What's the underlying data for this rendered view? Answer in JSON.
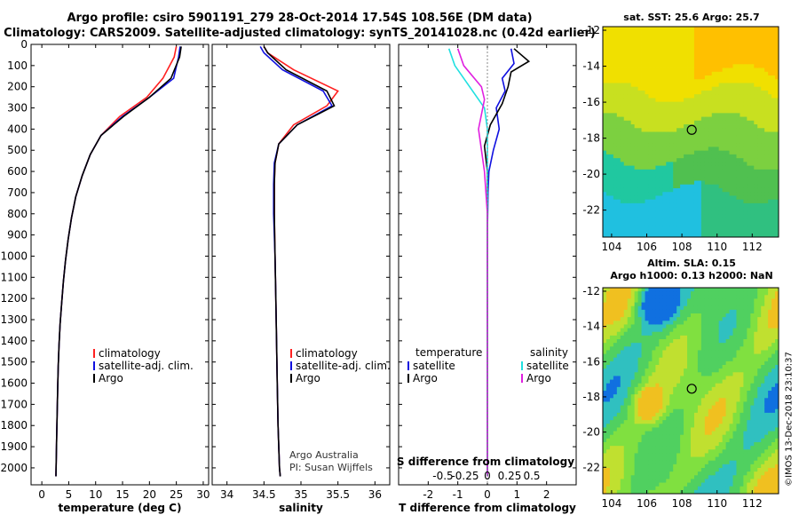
{
  "figure": {
    "title_line1": "Argo profile: csiro 5901191_279 28-Oct-2014 17.54S 108.56E (DM data)",
    "title_line2": "Climatology: CARS2009. Satellite-adjusted climatology: synTS_20141028.nc (0.42d earlier)",
    "timestamp": "©IMOS 13-Dec-2018 23:10:37"
  },
  "colors": {
    "climatology": "#ff2020",
    "satellite": "#1010e0",
    "argo": "#000000",
    "sal_satellite": "#20e0e0",
    "sal_argo": "#e020e0"
  },
  "chart_data": [
    {
      "type": "line",
      "xlabel": "temperature (deg C)",
      "ylabel": "",
      "xlim": [
        -2,
        31
      ],
      "ylim": [
        2080,
        0
      ],
      "y_inverted": true,
      "xticks": [
        0,
        5,
        10,
        15,
        20,
        25,
        30
      ],
      "yticks": [
        0,
        100,
        200,
        300,
        400,
        500,
        600,
        700,
        800,
        900,
        1000,
        1100,
        1200,
        1300,
        1400,
        1500,
        1600,
        1700,
        1800,
        1900,
        2000
      ],
      "legend": [
        "climatology",
        "satellite-adj. clim.",
        "Argo"
      ],
      "series": [
        {
          "name": "climatology",
          "x": [
            25.0,
            24.6,
            22.5,
            19.5,
            14.5,
            11.0,
            9.0,
            7.5,
            6.3,
            5.5,
            4.9,
            4.4,
            4.0,
            3.7,
            3.4,
            3.2,
            3.05,
            2.95,
            2.85,
            2.75,
            2.62
          ],
          "y": [
            10,
            60,
            160,
            250,
            340,
            430,
            520,
            620,
            720,
            820,
            920,
            1020,
            1120,
            1220,
            1320,
            1420,
            1520,
            1620,
            1740,
            1860,
            2040
          ]
        },
        {
          "name": "satellite-adj. clim.",
          "x": [
            25.7,
            25.4,
            24.5,
            20.0,
            15.0,
            11.0,
            9.0,
            7.5,
            6.3,
            5.5,
            4.9,
            4.4,
            4.0,
            3.7,
            3.4,
            3.2,
            3.05,
            2.95,
            2.85,
            2.75,
            2.62
          ],
          "y": [
            10,
            60,
            160,
            250,
            340,
            430,
            520,
            620,
            720,
            820,
            920,
            1020,
            1120,
            1220,
            1320,
            1420,
            1520,
            1620,
            1740,
            1860,
            2040
          ]
        },
        {
          "name": "Argo",
          "x": [
            25.9,
            25.6,
            24.0,
            20.0,
            15.2,
            11.0,
            9.0,
            7.5,
            6.3,
            5.5,
            4.9,
            4.4,
            4.0,
            3.7,
            3.4,
            3.2,
            3.05,
            2.95,
            2.85,
            2.75,
            2.62
          ],
          "y": [
            10,
            60,
            160,
            250,
            340,
            430,
            520,
            620,
            720,
            820,
            920,
            1020,
            1120,
            1220,
            1320,
            1420,
            1520,
            1620,
            1740,
            1860,
            2040
          ]
        }
      ]
    },
    {
      "type": "line",
      "xlabel": "salinity",
      "xlim": [
        33.8,
        36.2
      ],
      "ylim": [
        2080,
        0
      ],
      "y_inverted": true,
      "xticks": [
        34,
        34.5,
        35,
        35.5,
        36
      ],
      "legend": [
        "climatology",
        "satellite-adj. clim.",
        "Argo"
      ],
      "annotation": [
        "Argo Australia",
        "PI: Susan Wijffels"
      ],
      "series": [
        {
          "name": "climatology",
          "x": [
            34.5,
            34.55,
            34.9,
            35.5,
            35.35,
            34.9,
            34.7,
            34.65,
            34.64,
            34.64,
            34.65,
            34.66,
            34.67,
            34.68,
            34.69,
            34.7,
            34.71,
            34.72
          ],
          "y": [
            10,
            40,
            120,
            220,
            290,
            380,
            470,
            560,
            660,
            800,
            1000,
            1200,
            1400,
            1600,
            1800,
            1900,
            2000,
            2040
          ]
        },
        {
          "name": "satellite-adj. clim.",
          "x": [
            34.45,
            34.5,
            34.75,
            35.3,
            35.42,
            34.95,
            34.7,
            34.64,
            34.63,
            34.63,
            34.65,
            34.66,
            34.67,
            34.68,
            34.69,
            34.7,
            34.71,
            34.72
          ],
          "y": [
            10,
            40,
            120,
            220,
            290,
            380,
            470,
            560,
            660,
            800,
            1000,
            1200,
            1400,
            1600,
            1800,
            1900,
            2000,
            2040
          ]
        },
        {
          "name": "Argo",
          "x": [
            34.5,
            34.55,
            34.8,
            35.35,
            35.45,
            34.95,
            34.7,
            34.65,
            34.64,
            34.64,
            34.65,
            34.66,
            34.67,
            34.68,
            34.69,
            34.7,
            34.71,
            34.72
          ],
          "y": [
            10,
            40,
            120,
            220,
            290,
            380,
            470,
            560,
            660,
            800,
            1000,
            1200,
            1400,
            1600,
            1800,
            1900,
            2000,
            2040
          ]
        }
      ]
    },
    {
      "type": "line",
      "xlabel": "T difference from climatology",
      "title": "S difference from climatology",
      "xlim": [
        -3,
        3
      ],
      "ylim": [
        2080,
        0
      ],
      "y_inverted": true,
      "xticks": [
        -2,
        -1,
        0,
        1,
        2
      ],
      "top_xticks": [
        "-0.5",
        "-0.25",
        "0",
        "0.25",
        "0.5"
      ],
      "legend": {
        "temperature": [
          "satellite",
          "Argo"
        ],
        "salinity": [
          "satellite",
          "Argo"
        ]
      },
      "series": [
        {
          "name": "temperature satellite",
          "x": [
            0.8,
            0.9,
            0.5,
            0.6,
            0.3,
            0.4,
            0.2,
            0.05,
            0.02,
            0.0,
            0.0,
            0.0,
            0.0,
            0.0
          ],
          "y": [
            20,
            90,
            160,
            220,
            300,
            400,
            500,
            600,
            700,
            900,
            1200,
            1600,
            1900,
            2040
          ]
        },
        {
          "name": "temperature Argo",
          "x": [
            0.9,
            1.4,
            0.8,
            0.7,
            0.5,
            0.1,
            -0.1,
            0.0,
            0.0,
            0.0,
            0.0,
            0.0,
            0.0,
            0.0
          ],
          "y": [
            20,
            80,
            130,
            200,
            280,
            380,
            480,
            600,
            700,
            900,
            1200,
            1600,
            1900,
            2040
          ]
        },
        {
          "name": "salinity satellite",
          "x": [
            -1.3,
            -1.1,
            -0.6,
            -0.1,
            0.0,
            0.0,
            0.0,
            0.0,
            0.0
          ],
          "y": [
            20,
            100,
            200,
            300,
            400,
            600,
            1000,
            1500,
            2040
          ]
        },
        {
          "name": "salinity Argo",
          "x": [
            -1.0,
            -0.8,
            -0.2,
            -0.1,
            -0.3,
            -0.1,
            0.0,
            0.0,
            0.0,
            0.0
          ],
          "y": [
            20,
            100,
            200,
            260,
            400,
            600,
            800,
            1200,
            1600,
            2040
          ]
        }
      ]
    },
    {
      "type": "heatmap",
      "title": "sat. SST: 25.6 Argo: 25.7",
      "xlim": [
        103.5,
        113.5
      ],
      "ylim": [
        -23.5,
        -11.8
      ],
      "xticks": [
        104,
        106,
        108,
        110,
        112
      ],
      "yticks": [
        -12,
        -14,
        -16,
        -18,
        -20,
        -22
      ],
      "marker": [
        108.56,
        -17.54
      ]
    },
    {
      "type": "heatmap",
      "title_line1": "Altim. SLA: 0.15",
      "title_line2": "Argo h1000: 0.13 h2000: NaN",
      "xlim": [
        103.5,
        113.5
      ],
      "ylim": [
        -23.5,
        -11.8
      ],
      "xticks": [
        104,
        106,
        108,
        110,
        112
      ],
      "yticks": [
        -12,
        -14,
        -16,
        -18,
        -20,
        -22
      ],
      "marker": [
        108.56,
        -17.54
      ]
    }
  ]
}
